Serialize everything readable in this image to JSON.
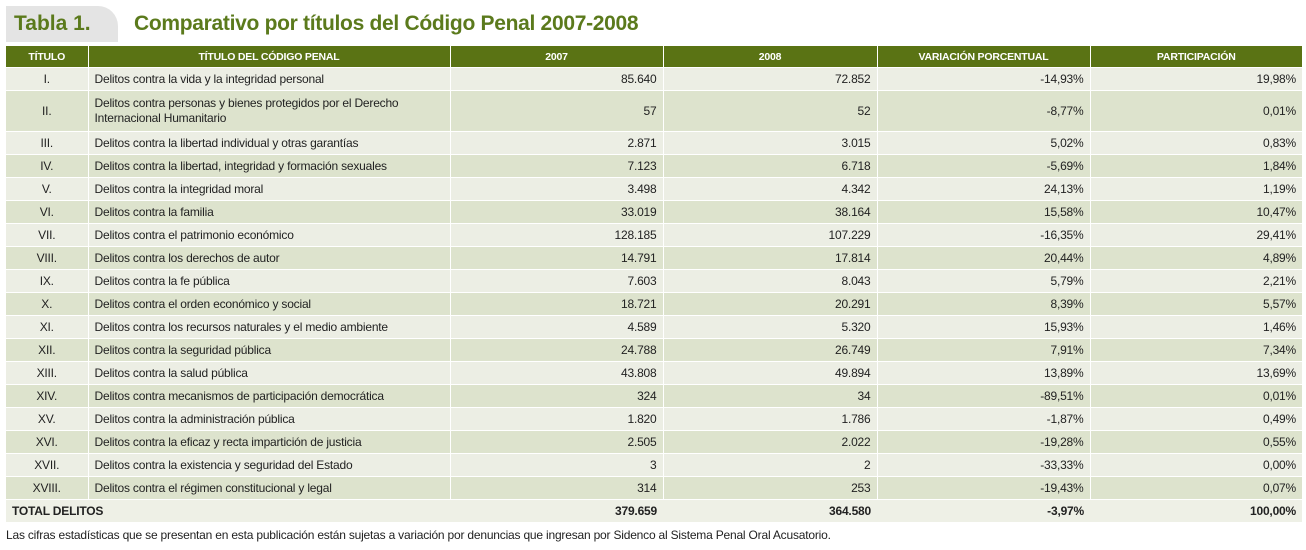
{
  "header": {
    "table_label": "Tabla 1.",
    "title": "Comparativo por títulos del Código Penal 2007-2008"
  },
  "columns": [
    "TÍTULO",
    "TÍTULO DEL CÓDIGO PENAL",
    "2007",
    "2008",
    "VARIACIÓN PORCENTUAL",
    "PARTICIPACIÓN"
  ],
  "rows": [
    [
      "I.",
      "Delitos contra la vida y la integridad personal",
      "85.640",
      "72.852",
      "-14,93%",
      "19,98%"
    ],
    [
      "II.",
      "Delitos contra personas y bienes protegidos por el Derecho Internacional Humanitario",
      "57",
      "52",
      "-8,77%",
      "0,01%"
    ],
    [
      "III.",
      "Delitos contra la libertad individual y otras garantías",
      "2.871",
      "3.015",
      "5,02%",
      "0,83%"
    ],
    [
      "IV.",
      "Delitos contra la libertad, integridad y formación sexuales",
      "7.123",
      "6.718",
      "-5,69%",
      "1,84%"
    ],
    [
      "V.",
      "Delitos contra la integridad moral",
      "3.498",
      "4.342",
      "24,13%",
      "1,19%"
    ],
    [
      "VI.",
      "Delitos contra la familia",
      "33.019",
      "38.164",
      "15,58%",
      "10,47%"
    ],
    [
      "VII.",
      "Delitos contra el patrimonio económico",
      "128.185",
      "107.229",
      "-16,35%",
      "29,41%"
    ],
    [
      "VIII.",
      "Delitos contra los derechos de autor",
      "14.791",
      "17.814",
      "20,44%",
      "4,89%"
    ],
    [
      "IX.",
      "Delitos contra la fe pública",
      "7.603",
      "8.043",
      "5,79%",
      "2,21%"
    ],
    [
      "X.",
      "Delitos contra el orden económico y social",
      "18.721",
      "20.291",
      "8,39%",
      "5,57%"
    ],
    [
      "XI.",
      "Delitos contra los recursos naturales y el medio ambiente",
      "4.589",
      "5.320",
      "15,93%",
      "1,46%"
    ],
    [
      "XII.",
      "Delitos contra la seguridad pública",
      "24.788",
      "26.749",
      "7,91%",
      "7,34%"
    ],
    [
      "XIII.",
      "Delitos contra la salud pública",
      "43.808",
      "49.894",
      "13,89%",
      "13,69%"
    ],
    [
      "XIV.",
      "Delitos contra mecanismos de participación democrática",
      "324",
      "34",
      "-89,51%",
      "0,01%"
    ],
    [
      "XV.",
      "Delitos contra la administración pública",
      "1.820",
      "1.786",
      "-1,87%",
      "0,49%"
    ],
    [
      "XVI.",
      "Delitos contra la eficaz y recta impartición de justicia",
      "2.505",
      "2.022",
      "-19,28%",
      "0,55%"
    ],
    [
      "XVII.",
      "Delitos contra la existencia y seguridad del Estado",
      "3",
      "2",
      "-33,33%",
      "0,00%"
    ],
    [
      "XVIII.",
      "Delitos contra el régimen constitucional y legal",
      "314",
      "253",
      "-19,43%",
      "0,07%"
    ]
  ],
  "total": {
    "label": "TOTAL DELITOS",
    "y2007": "379.659",
    "y2008": "364.580",
    "variation": "-3,97%",
    "participation": "100,00%"
  },
  "footnote": "Las cifras estadísticas que se presentan en esta publicación están sujetas a variación por denuncias que ingresan por Sidenco al Sistema Penal Oral Acusatorio."
}
